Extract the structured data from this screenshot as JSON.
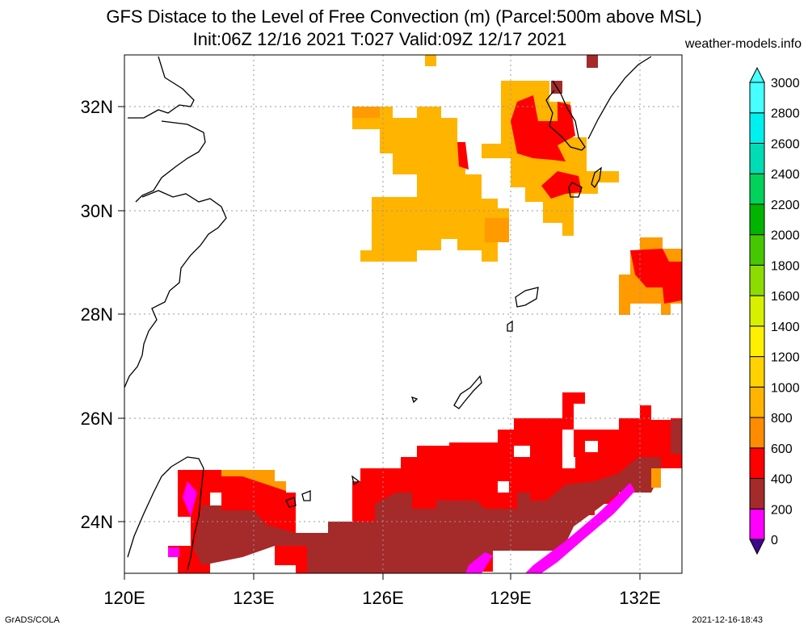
{
  "title_line1": "GFS Distace to the Level of Free Convection (m) (Parcel:500m above MSL)",
  "title_line2": "Init:06Z 12/16 2021 T:027 Valid:09Z 12/17 2021",
  "brand": "weather-models.info",
  "footer_left": "GrADS/COLA",
  "footer_right": "2021-12-16-18:43",
  "axes": {
    "lon_labels": [
      "120E",
      "123E",
      "126E",
      "129E",
      "132E"
    ],
    "lat_labels": [
      "32N",
      "30N",
      "28N",
      "26N",
      "24N"
    ]
  },
  "map_extent": {
    "lon": [
      120,
      133
    ],
    "lat": [
      23,
      33
    ]
  },
  "colorbar": {
    "labels": [
      "0",
      "200",
      "400",
      "600",
      "800",
      "1000",
      "1200",
      "1400",
      "1600",
      "1800",
      "2000",
      "2200",
      "2400",
      "2600",
      "2800",
      "3000"
    ],
    "colors": [
      "#3c0a8c",
      "#ff00ff",
      "#a52a2a",
      "#ff0000",
      "#ff8c00",
      "#ffb400",
      "#ffd200",
      "#fff000",
      "#d7f000",
      "#8cdc00",
      "#46c800",
      "#00b400",
      "#00d25a",
      "#00dcb4",
      "#00f0f0",
      "#46ffff"
    ]
  },
  "colors": {
    "grid": "#999999",
    "coast": "#000000"
  }
}
